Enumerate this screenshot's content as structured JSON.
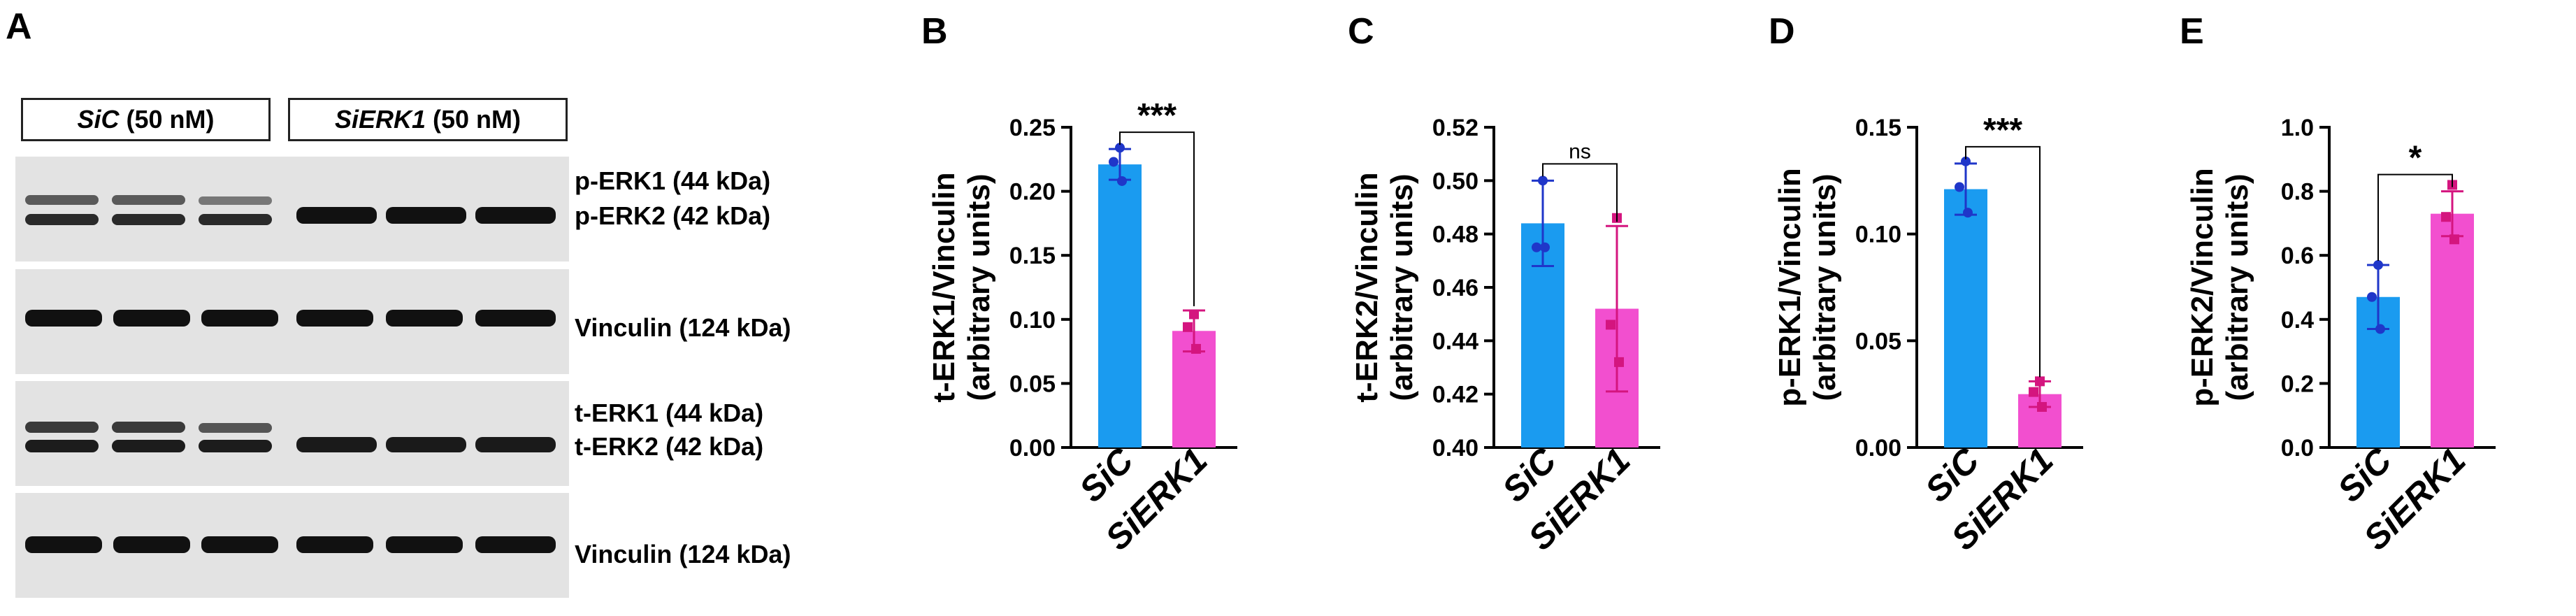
{
  "panels": {
    "a": "A",
    "b": "B",
    "c": "C",
    "d": "D",
    "e": "E"
  },
  "blot": {
    "conditions": [
      {
        "name": "SiC",
        "dose": "(50 nM)"
      },
      {
        "name": "SiERK1",
        "dose": "(50 nM)"
      }
    ],
    "labels": {
      "perk1": "p-ERK1 (44 kDa)",
      "perk2": "p-ERK2 (42 kDa)",
      "vinc1": "Vinculin  (124 kDa)",
      "terk1": "t-ERK1 (44 kDa)",
      "terk2": "t-ERK2 (42 kDa)",
      "vinc2": "Vinculin  (124 kDa)"
    }
  },
  "colors": {
    "sic": "#1a9bf0",
    "sierk1": "#f24fcf",
    "dot_sic": "#1f36c9",
    "dot_sierk1": "#d4157f"
  },
  "chart_data": [
    {
      "panel": "B",
      "type": "bar",
      "categories": [
        "SiC",
        "SiERK1"
      ],
      "values": [
        0.221,
        0.091
      ],
      "errors": [
        0.012,
        0.016
      ],
      "points": [
        [
          0.234,
          0.223,
          0.208
        ],
        [
          0.104,
          0.094,
          0.077
        ]
      ],
      "ylabel": [
        "t-ERK1/Vinculin",
        "(arbitrary units)"
      ],
      "ylim": [
        0,
        0.25
      ],
      "ticks": [
        0,
        0.05,
        0.1,
        0.15,
        0.2,
        0.25
      ],
      "tick_labels": [
        "0.00",
        "0.05",
        "0.10",
        "0.15",
        "0.20",
        "0.25"
      ],
      "significance": "***"
    },
    {
      "panel": "C",
      "type": "bar",
      "categories": [
        "SiC",
        "SiERK1"
      ],
      "values": [
        0.484,
        0.452
      ],
      "errors": [
        0.016,
        0.031
      ],
      "points": [
        [
          0.5,
          0.475,
          0.475
        ],
        [
          0.486,
          0.446,
          0.432
        ]
      ],
      "ylabel": [
        "t-ERK2/Vinculin",
        "(arbitrary units)"
      ],
      "ylim": [
        0.4,
        0.52
      ],
      "ticks": [
        0.4,
        0.42,
        0.44,
        0.46,
        0.48,
        0.5,
        0.52
      ],
      "tick_labels": [
        "0.40",
        "0.42",
        "0.44",
        "0.46",
        "0.48",
        "0.50",
        "0.52"
      ],
      "significance": "ns"
    },
    {
      "panel": "D",
      "type": "bar",
      "categories": [
        "SiC",
        "SiERK1"
      ],
      "values": [
        0.121,
        0.025
      ],
      "errors": [
        0.012,
        0.006
      ],
      "points": [
        [
          0.134,
          0.122,
          0.11
        ],
        [
          0.031,
          0.026,
          0.019
        ]
      ],
      "ylabel": [
        "p-ERK1/Vinculin",
        "(arbitrary units)"
      ],
      "ylim": [
        0,
        0.15
      ],
      "ticks": [
        0,
        0.05,
        0.1,
        0.15
      ],
      "tick_labels": [
        "0.00",
        "0.05",
        "0.10",
        "0.15"
      ],
      "significance": "***"
    },
    {
      "panel": "E",
      "type": "bar",
      "categories": [
        "SiC",
        "SiERK1"
      ],
      "values": [
        0.47,
        0.73
      ],
      "errors": [
        0.1,
        0.07
      ],
      "points": [
        [
          0.57,
          0.47,
          0.37
        ],
        [
          0.82,
          0.72,
          0.65
        ]
      ],
      "ylabel": [
        "p-ERK2/Vinculin",
        "(arbitrary units)"
      ],
      "ylim": [
        0,
        1.0
      ],
      "ticks": [
        0,
        0.2,
        0.4,
        0.6,
        0.8,
        1.0
      ],
      "tick_labels": [
        "0.0",
        "0.2",
        "0.4",
        "0.6",
        "0.8",
        "1.0"
      ],
      "significance": "*"
    }
  ]
}
